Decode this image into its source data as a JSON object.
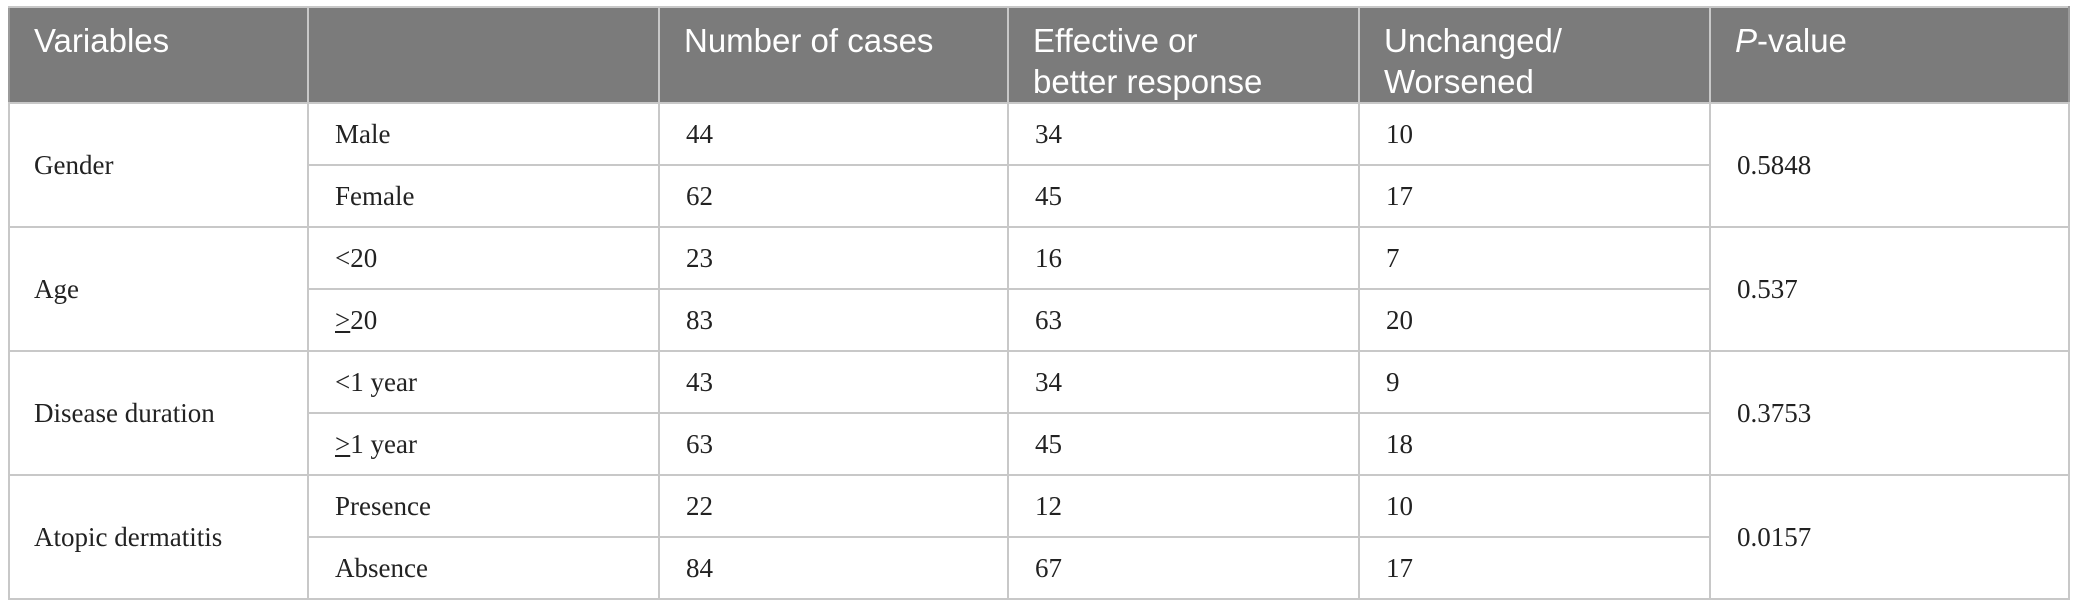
{
  "headers": {
    "variables": "Variables",
    "blank": "",
    "cases": "Number of cases",
    "effective_l1": "Effective or",
    "effective_l2": "better response",
    "unchanged_l1": "Unchanged/",
    "unchanged_l2": "Worsened",
    "p_italic": "P",
    "p_rest": "-value"
  },
  "rows": [
    {
      "group": "Gender",
      "p_value": "0.5848",
      "sub": [
        {
          "label": "Male",
          "cases": "44",
          "effective": "34",
          "unchanged": "10"
        },
        {
          "label": "Female",
          "cases": "62",
          "effective": "45",
          "unchanged": "17"
        }
      ]
    },
    {
      "group": "Age",
      "p_value": "0.537",
      "sub": [
        {
          "label": "<20",
          "cases": "23",
          "effective": "16",
          "unchanged": "7"
        },
        {
          "label_sym": ">",
          "label_rest": "20",
          "cases": "83",
          "effective": "63",
          "unchanged": "20"
        }
      ]
    },
    {
      "group": "Disease duration",
      "p_value": "0.3753",
      "sub": [
        {
          "label": "<1 year",
          "cases": "43",
          "effective": "34",
          "unchanged": "9"
        },
        {
          "label_sym": ">",
          "label_rest": "1 year",
          "cases": "63",
          "effective": "45",
          "unchanged": "18"
        }
      ]
    },
    {
      "group": "Atopic dermatitis",
      "p_value": "0.0157",
      "sub": [
        {
          "label": "Presence",
          "cases": "22",
          "effective": "12",
          "unchanged": "10"
        },
        {
          "label": "Absence",
          "cases": "84",
          "effective": "67",
          "unchanged": "17"
        }
      ]
    }
  ]
}
